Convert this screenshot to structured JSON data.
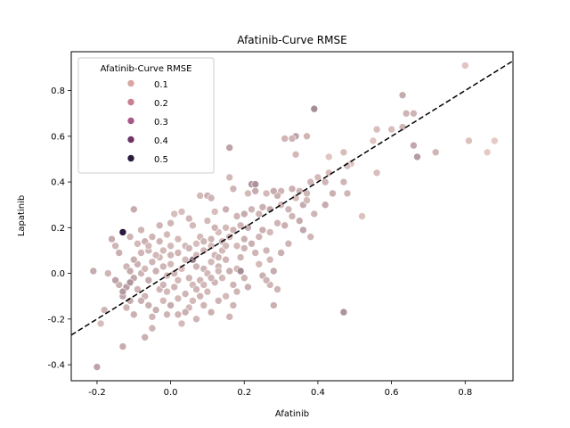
{
  "chart_data": {
    "type": "scatter",
    "title": "Afatinib-Curve RMSE",
    "xlabel": "Afatinib",
    "ylabel": "Lapatinib",
    "xlim": [
      -0.27,
      0.93
    ],
    "ylim": [
      -0.47,
      0.97
    ],
    "x_ticks": [
      "-0.2",
      "0.0",
      "0.2",
      "0.4",
      "0.6",
      "0.8"
    ],
    "x_tick_values": [
      -0.2,
      0.0,
      0.2,
      0.4,
      0.6,
      0.8
    ],
    "y_ticks": [
      "-0.4",
      "-0.2",
      "0.0",
      "0.2",
      "0.4",
      "0.6",
      "0.8"
    ],
    "y_tick_values": [
      -0.4,
      -0.2,
      0.0,
      0.2,
      0.4,
      0.6,
      0.8
    ],
    "grid": false,
    "legend": {
      "title": "Afatinib-Curve RMSE",
      "placement": "upper-left",
      "entries": [
        {
          "label": "0.1",
          "color": "#d9a5a5"
        },
        {
          "label": "0.2",
          "color": "#c97f92"
        },
        {
          "label": "0.3",
          "color": "#a6588a"
        },
        {
          "label": "0.4",
          "color": "#6e3466"
        },
        {
          "label": "0.5",
          "color": "#2b1a3e"
        }
      ]
    },
    "reference_line": {
      "type": "identity",
      "style": "dashed",
      "color": "#000000"
    },
    "marker_edge_color": "#ffffff",
    "hue_colors": {
      "light": "#edd1cb",
      "dark": "#2b1a3e"
    },
    "points": [
      [
        0.8,
        0.91,
        0.08
      ],
      [
        0.88,
        0.58,
        0.07
      ],
      [
        0.86,
        0.53,
        0.07
      ],
      [
        0.81,
        0.58,
        0.09
      ],
      [
        0.72,
        0.53,
        0.12
      ],
      [
        0.67,
        0.51,
        0.18
      ],
      [
        0.66,
        0.56,
        0.15
      ],
      [
        0.66,
        0.7,
        0.12
      ],
      [
        0.64,
        0.7,
        0.12
      ],
      [
        0.63,
        0.78,
        0.14
      ],
      [
        0.63,
        0.64,
        0.12
      ],
      [
        0.6,
        0.63,
        0.1
      ],
      [
        0.56,
        0.63,
        0.1
      ],
      [
        0.55,
        0.58,
        0.08
      ],
      [
        0.56,
        0.44,
        0.1
      ],
      [
        0.52,
        0.25,
        0.09
      ],
      [
        0.49,
        0.48,
        0.09
      ],
      [
        0.48,
        0.47,
        0.1
      ],
      [
        0.48,
        0.35,
        0.12
      ],
      [
        0.47,
        0.4,
        0.12
      ],
      [
        0.47,
        0.53,
        0.1
      ],
      [
        0.43,
        0.51,
        0.08
      ],
      [
        0.43,
        0.44,
        0.1
      ],
      [
        0.42,
        0.4,
        0.12
      ],
      [
        0.44,
        0.35,
        0.13
      ],
      [
        0.42,
        0.3,
        0.14
      ],
      [
        0.39,
        0.72,
        0.22
      ],
      [
        0.4,
        0.42,
        0.11
      ],
      [
        0.38,
        0.4,
        0.12
      ],
      [
        0.37,
        0.35,
        0.12
      ],
      [
        0.36,
        0.3,
        0.14
      ],
      [
        0.37,
        0.6,
        0.12
      ],
      [
        0.34,
        0.6,
        0.16
      ],
      [
        0.34,
        0.52,
        0.11
      ],
      [
        0.33,
        0.59,
        0.12
      ],
      [
        0.31,
        0.59,
        0.12
      ],
      [
        0.33,
        0.37,
        0.13
      ],
      [
        0.35,
        0.36,
        0.12
      ],
      [
        0.34,
        0.33,
        0.1
      ],
      [
        0.32,
        0.28,
        0.12
      ],
      [
        0.3,
        0.3,
        0.11
      ],
      [
        0.3,
        0.36,
        0.12
      ],
      [
        0.29,
        0.34,
        0.13
      ],
      [
        0.28,
        0.36,
        0.14
      ],
      [
        0.27,
        0.28,
        0.15
      ],
      [
        0.26,
        0.35,
        0.11
      ],
      [
        0.25,
        0.29,
        0.13
      ],
      [
        0.24,
        0.26,
        0.12
      ],
      [
        0.23,
        0.36,
        0.14
      ],
      [
        0.22,
        0.39,
        0.19
      ],
      [
        0.23,
        0.39,
        0.2
      ],
      [
        0.21,
        0.35,
        0.11
      ],
      [
        0.22,
        0.28,
        0.12
      ],
      [
        0.2,
        0.26,
        0.14
      ],
      [
        0.25,
        0.19,
        0.13
      ],
      [
        0.24,
        0.16,
        0.12
      ],
      [
        0.26,
        0.1,
        0.12
      ],
      [
        0.27,
        0.06,
        0.11
      ],
      [
        0.28,
        0.01,
        0.14
      ],
      [
        0.25,
        -0.01,
        0.13
      ],
      [
        0.27,
        -0.05,
        0.12
      ],
      [
        0.29,
        -0.07,
        0.12
      ],
      [
        0.28,
        -0.14,
        0.13
      ],
      [
        0.47,
        -0.17,
        0.2
      ],
      [
        0.16,
        0.55,
        0.16
      ],
      [
        0.16,
        0.42,
        0.11
      ],
      [
        0.17,
        0.37,
        0.12
      ],
      [
        0.15,
        0.28,
        0.13
      ],
      [
        0.1,
        0.34,
        0.13
      ],
      [
        0.11,
        0.33,
        0.12
      ],
      [
        0.08,
        0.34,
        0.11
      ],
      [
        0.12,
        0.27,
        0.1
      ],
      [
        0.18,
        0.25,
        0.12
      ],
      [
        0.21,
        0.2,
        0.14
      ],
      [
        0.19,
        0.21,
        0.12
      ],
      [
        0.17,
        0.19,
        0.12
      ],
      [
        0.15,
        0.2,
        0.11
      ],
      [
        0.13,
        0.18,
        0.1
      ],
      [
        0.12,
        0.2,
        0.12
      ],
      [
        0.11,
        0.15,
        0.12
      ],
      [
        0.1,
        0.23,
        0.11
      ],
      [
        0.09,
        0.1,
        0.12
      ],
      [
        0.08,
        0.16,
        0.11
      ],
      [
        0.07,
        0.13,
        0.1
      ],
      [
        0.06,
        0.21,
        0.11
      ],
      [
        0.05,
        0.24,
        0.12
      ],
      [
        0.04,
        0.12,
        0.11
      ],
      [
        0.03,
        0.27,
        0.1
      ],
      [
        0.01,
        0.26,
        0.1
      ],
      [
        0.0,
        0.22,
        0.12
      ],
      [
        -0.01,
        0.17,
        0.11
      ],
      [
        -0.03,
        0.21,
        0.12
      ],
      [
        0.0,
        0.12,
        0.11
      ],
      [
        0.02,
        0.09,
        0.12
      ],
      [
        0.04,
        0.06,
        0.11
      ],
      [
        0.06,
        0.06,
        0.25
      ],
      [
        0.07,
        0.03,
        0.12
      ],
      [
        0.09,
        0.02,
        0.12
      ],
      [
        0.11,
        0.05,
        0.11
      ],
      [
        0.13,
        0.03,
        0.12
      ],
      [
        0.15,
        0.06,
        0.12
      ],
      [
        0.16,
        0.01,
        0.13
      ],
      [
        0.18,
        0.02,
        0.11
      ],
      [
        0.19,
        0.07,
        0.12
      ],
      [
        0.2,
        0.11,
        0.12
      ],
      [
        0.22,
        0.13,
        0.13
      ],
      [
        0.2,
        -0.02,
        0.12
      ],
      [
        0.21,
        -0.06,
        0.13
      ],
      [
        0.18,
        -0.08,
        0.12
      ],
      [
        0.19,
        0.01,
        0.22
      ],
      [
        0.17,
        -0.05,
        0.12
      ],
      [
        0.14,
        -0.02,
        0.11
      ],
      [
        0.12,
        -0.04,
        0.12
      ],
      [
        0.1,
        -0.08,
        0.11
      ],
      [
        0.08,
        -0.1,
        0.12
      ],
      [
        0.09,
        -0.14,
        0.12
      ],
      [
        0.16,
        -0.19,
        0.12
      ],
      [
        0.07,
        -0.2,
        0.12
      ],
      [
        0.05,
        -0.15,
        0.11
      ],
      [
        0.04,
        -0.17,
        0.13
      ],
      [
        0.02,
        -0.18,
        0.12
      ],
      [
        0.03,
        -0.22,
        0.11
      ],
      [
        0.0,
        -0.14,
        0.14
      ],
      [
        -0.01,
        -0.18,
        0.12
      ],
      [
        -0.02,
        -0.12,
        0.11
      ],
      [
        -0.03,
        -0.07,
        0.12
      ],
      [
        -0.04,
        -0.16,
        0.13
      ],
      [
        -0.05,
        -0.19,
        0.12
      ],
      [
        -0.06,
        -0.14,
        0.13
      ],
      [
        -0.07,
        -0.1,
        0.12
      ],
      [
        -0.08,
        -0.12,
        0.13
      ],
      [
        -0.09,
        -0.07,
        0.12
      ],
      [
        -0.1,
        -0.18,
        0.13
      ],
      [
        -0.11,
        -0.12,
        0.14
      ],
      [
        -0.12,
        -0.15,
        0.12
      ],
      [
        -0.13,
        -0.1,
        0.15
      ],
      [
        -0.14,
        -0.05,
        0.13
      ],
      [
        -0.12,
        0.03,
        0.12
      ],
      [
        -0.11,
        0.01,
        0.14
      ],
      [
        -0.1,
        -0.02,
        0.15
      ],
      [
        -0.09,
        0.04,
        0.13
      ],
      [
        -0.08,
        0.0,
        0.12
      ],
      [
        -0.07,
        0.02,
        0.11
      ],
      [
        -0.06,
        -0.03,
        0.14
      ],
      [
        -0.05,
        0.05,
        0.12
      ],
      [
        -0.04,
        0.01,
        0.13
      ],
      [
        -0.03,
        0.07,
        0.11
      ],
      [
        -0.02,
        0.03,
        0.12
      ],
      [
        -0.01,
        -0.01,
        0.1
      ],
      [
        0.0,
        0.04,
        0.11
      ],
      [
        0.01,
        0.0,
        0.12
      ],
      [
        0.02,
        -0.03,
        0.11
      ],
      [
        0.03,
        0.02,
        0.1
      ],
      [
        0.05,
        -0.02,
        0.12
      ],
      [
        0.06,
        -0.05,
        0.11
      ],
      [
        0.08,
        -0.03,
        0.12
      ],
      [
        0.1,
        0.0,
        0.11
      ],
      [
        0.12,
        0.08,
        0.12
      ],
      [
        0.14,
        0.1,
        0.11
      ],
      [
        -0.13,
        0.18,
        0.5
      ],
      [
        -0.16,
        0.15,
        0.14
      ],
      [
        -0.15,
        0.12,
        0.12
      ],
      [
        -0.14,
        0.09,
        0.13
      ],
      [
        -0.11,
        0.16,
        0.12
      ],
      [
        -0.09,
        0.13,
        0.11
      ],
      [
        -0.08,
        0.19,
        0.12
      ],
      [
        -0.1,
        0.28,
        0.14
      ],
      [
        -0.07,
        0.14,
        0.13
      ],
      [
        -0.06,
        0.1,
        0.12
      ],
      [
        -0.05,
        0.16,
        0.12
      ],
      [
        -0.04,
        0.08,
        0.11
      ],
      [
        -0.15,
        -0.03,
        0.16
      ],
      [
        -0.18,
        -0.16,
        0.12
      ],
      [
        -0.19,
        -0.22,
        0.1
      ],
      [
        -0.17,
        0.0,
        0.12
      ],
      [
        -0.21,
        0.01,
        0.14
      ],
      [
        -0.2,
        -0.41,
        0.16
      ],
      [
        -0.13,
        -0.32,
        0.14
      ],
      [
        -0.07,
        -0.28,
        0.13
      ],
      [
        -0.05,
        -0.24,
        0.12
      ],
      [
        0.11,
        -0.17,
        0.13
      ],
      [
        0.13,
        -0.12,
        0.12
      ],
      [
        0.15,
        -0.1,
        0.11
      ],
      [
        0.17,
        -0.14,
        0.12
      ],
      [
        0.14,
        0.14,
        0.12
      ],
      [
        0.16,
        0.16,
        0.12
      ],
      [
        0.18,
        0.12,
        0.11
      ],
      [
        0.2,
        0.15,
        0.13
      ],
      [
        0.23,
        0.09,
        0.12
      ],
      [
        0.24,
        0.04,
        0.11
      ],
      [
        0.26,
        -0.03,
        0.12
      ],
      [
        0.31,
        0.21,
        0.13
      ],
      [
        0.33,
        0.25,
        0.12
      ],
      [
        0.35,
        0.23,
        0.14
      ],
      [
        0.36,
        0.19,
        0.15
      ],
      [
        0.38,
        0.16,
        0.12
      ],
      [
        0.37,
        0.32,
        0.11
      ],
      [
        0.39,
        0.26,
        0.12
      ],
      [
        0.29,
        0.22,
        0.12
      ],
      [
        0.27,
        0.18,
        0.11
      ],
      [
        0.32,
        0.13,
        0.12
      ],
      [
        0.3,
        0.09,
        0.13
      ],
      [
        -0.02,
        -0.05,
        0.12
      ],
      [
        -0.01,
        -0.08,
        0.11
      ],
      [
        0.01,
        -0.06,
        0.12
      ],
      [
        0.02,
        -0.11,
        0.11
      ],
      [
        0.04,
        -0.09,
        0.12
      ],
      [
        0.06,
        -0.12,
        0.11
      ],
      [
        0.07,
        -0.07,
        0.12
      ],
      [
        0.09,
        -0.05,
        0.11
      ],
      [
        0.11,
        -0.02,
        0.12
      ],
      [
        0.13,
        0.01,
        0.11
      ],
      [
        -0.12,
        -0.06,
        0.17
      ],
      [
        -0.13,
        -0.08,
        0.18
      ],
      [
        -0.11,
        -0.04,
        0.19
      ],
      [
        -0.1,
        0.06,
        0.13
      ],
      [
        -0.08,
        0.09,
        0.12
      ],
      [
        -0.06,
        0.12,
        0.11
      ],
      [
        -0.03,
        0.14,
        0.12
      ],
      [
        -0.02,
        0.1,
        0.11
      ],
      [
        0.0,
        0.08,
        0.12
      ],
      [
        0.02,
        0.15,
        0.11
      ],
      [
        0.05,
        0.11,
        0.12
      ],
      [
        0.07,
        0.08,
        0.11
      ],
      [
        0.09,
        0.14,
        0.12
      ],
      [
        0.11,
        0.12,
        0.11
      ],
      [
        0.13,
        0.07,
        0.12
      ],
      [
        0.15,
        0.12,
        0.11
      ]
    ]
  }
}
